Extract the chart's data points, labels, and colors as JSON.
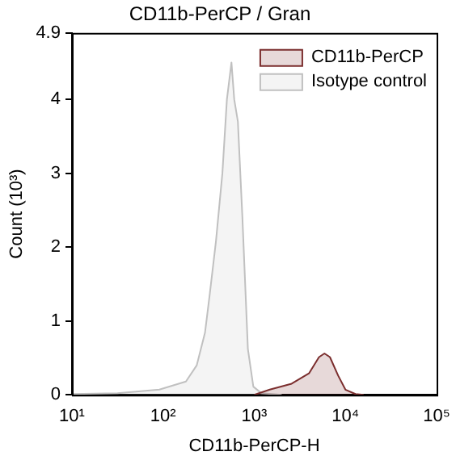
{
  "chart_data": {
    "type": "area",
    "title": "CD11b-PerCP / Gran",
    "xlabel": "CD11b-PerCP-H",
    "ylabel": "Count (10³)",
    "log": "x",
    "xlim": [
      10,
      100000
    ],
    "xticks": [
      {
        "value": 10,
        "label": "10¹"
      },
      {
        "value": 100,
        "label": "10²"
      },
      {
        "value": 1000,
        "label": "10³"
      },
      {
        "value": 10000,
        "label": "10⁴"
      },
      {
        "value": 100000,
        "label": "10⁵"
      }
    ],
    "ylim": [
      0,
      4.9
    ],
    "yticks": [
      0,
      1,
      2,
      3,
      4,
      4.9
    ],
    "grid": false,
    "legend": "top right",
    "marker": "none",
    "series": [
      {
        "name": "CD11b-PerCP",
        "color": "#7b2e2e",
        "x": [
          1000,
          1479,
          2570,
          3981,
          5129,
          5888,
          6761,
          8318,
          10000,
          12882,
          15849
        ],
        "values": [
          0,
          0.07,
          0.15,
          0.29,
          0.51,
          0.56,
          0.51,
          0.26,
          0.07,
          0.01,
          0
        ]
      },
      {
        "name": "Isotype control",
        "color": "#c0c0c0",
        "x": [
          10,
          31.6,
          91,
          178,
          234,
          288,
          324,
          380,
          447,
          501,
          562,
          603,
          661,
          741,
          851,
          977,
          1202,
          2000
        ],
        "values": [
          0.01,
          0.02,
          0.07,
          0.18,
          0.4,
          0.84,
          1.35,
          2.08,
          3.0,
          4.0,
          4.5,
          4.0,
          3.7,
          2.4,
          0.62,
          0.11,
          0.02,
          0
        ]
      }
    ]
  }
}
